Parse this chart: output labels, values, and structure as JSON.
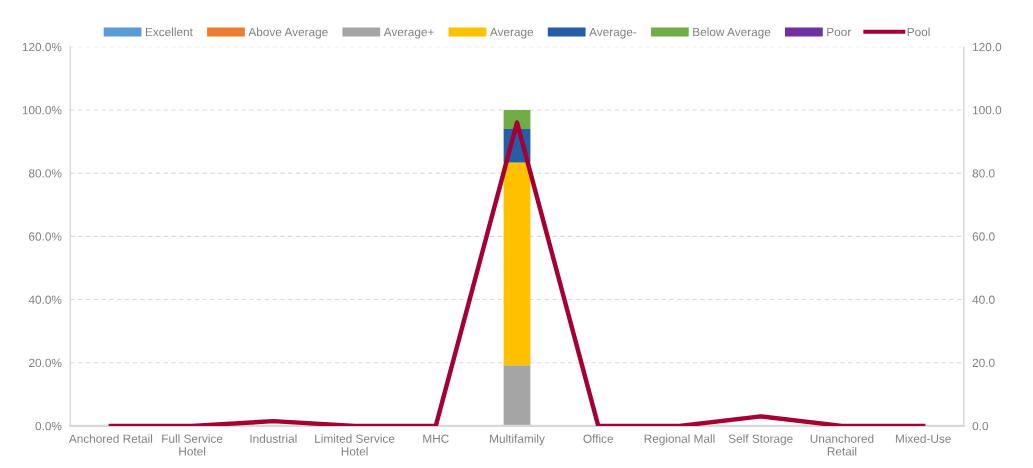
{
  "chart_data": {
    "type": "bar",
    "stacked": true,
    "categories": [
      "Anchored Retail",
      "Full Service\nHotel",
      "Industrial",
      "Limited Service\nHotel",
      "MHC",
      "Multifamily",
      "Office",
      "Regional Mall",
      "Self Storage",
      "Unanchored\nRetail",
      "Mixed-Use"
    ],
    "series": [
      {
        "name": "Excellent",
        "color": "#5b9bd5",
        "values": [
          0,
          0,
          0,
          0,
          0,
          0,
          0,
          0,
          0,
          0,
          0
        ]
      },
      {
        "name": "Above Average",
        "color": "#ed7d31",
        "values": [
          0,
          0,
          0,
          0,
          0,
          0,
          0,
          0,
          0,
          0,
          0
        ]
      },
      {
        "name": "Average+",
        "color": "#a5a5a5",
        "values": [
          0,
          0,
          0,
          0,
          0,
          19.2,
          0,
          0,
          0,
          0,
          0
        ]
      },
      {
        "name": "Average",
        "color": "#ffc000",
        "values": [
          0,
          0,
          0,
          0,
          0,
          64.2,
          0,
          0,
          0,
          0,
          0
        ]
      },
      {
        "name": "Average-",
        "color": "#255ea8",
        "values": [
          0,
          0,
          0,
          0,
          0,
          10.6,
          0,
          0,
          0,
          0,
          0
        ]
      },
      {
        "name": "Below Average",
        "color": "#70ad47",
        "values": [
          0,
          0,
          0,
          0,
          0,
          6.0,
          0,
          0,
          0,
          0,
          0
        ]
      },
      {
        "name": "Poor",
        "color": "#7030a0",
        "values": [
          0,
          0,
          0,
          0,
          0,
          0,
          0,
          0,
          0,
          0,
          0
        ]
      },
      {
        "name": "Pool",
        "color": "#a50034",
        "type": "line",
        "axis": "y2",
        "values": [
          0,
          0,
          1.5,
          0,
          0,
          96.0,
          0,
          0,
          3.0,
          0,
          0
        ]
      }
    ],
    "ylim": [
      0,
      120
    ],
    "yticks": [
      {
        "value": 0,
        "label": "0.0%"
      },
      {
        "value": 20,
        "label": "20.0%"
      },
      {
        "value": 40,
        "label": "40.0%"
      },
      {
        "value": 60,
        "label": "60.0%"
      },
      {
        "value": 80,
        "label": "80.0%"
      },
      {
        "value": 100,
        "label": "100.0%"
      },
      {
        "value": 120,
        "label": "120.0%"
      }
    ],
    "y2lim": [
      0,
      120
    ],
    "y2ticks": [
      {
        "value": 0,
        "label": "0.0"
      },
      {
        "value": 20,
        "label": "20.0"
      },
      {
        "value": 40,
        "label": "40.0"
      },
      {
        "value": 60,
        "label": "60.0"
      },
      {
        "value": 80,
        "label": "80.0"
      },
      {
        "value": 100,
        "label": "100.0"
      },
      {
        "value": 120,
        "label": "120.0"
      }
    ],
    "grid": "y",
    "legend": "top",
    "marker": "none",
    "line_style": "solid"
  }
}
